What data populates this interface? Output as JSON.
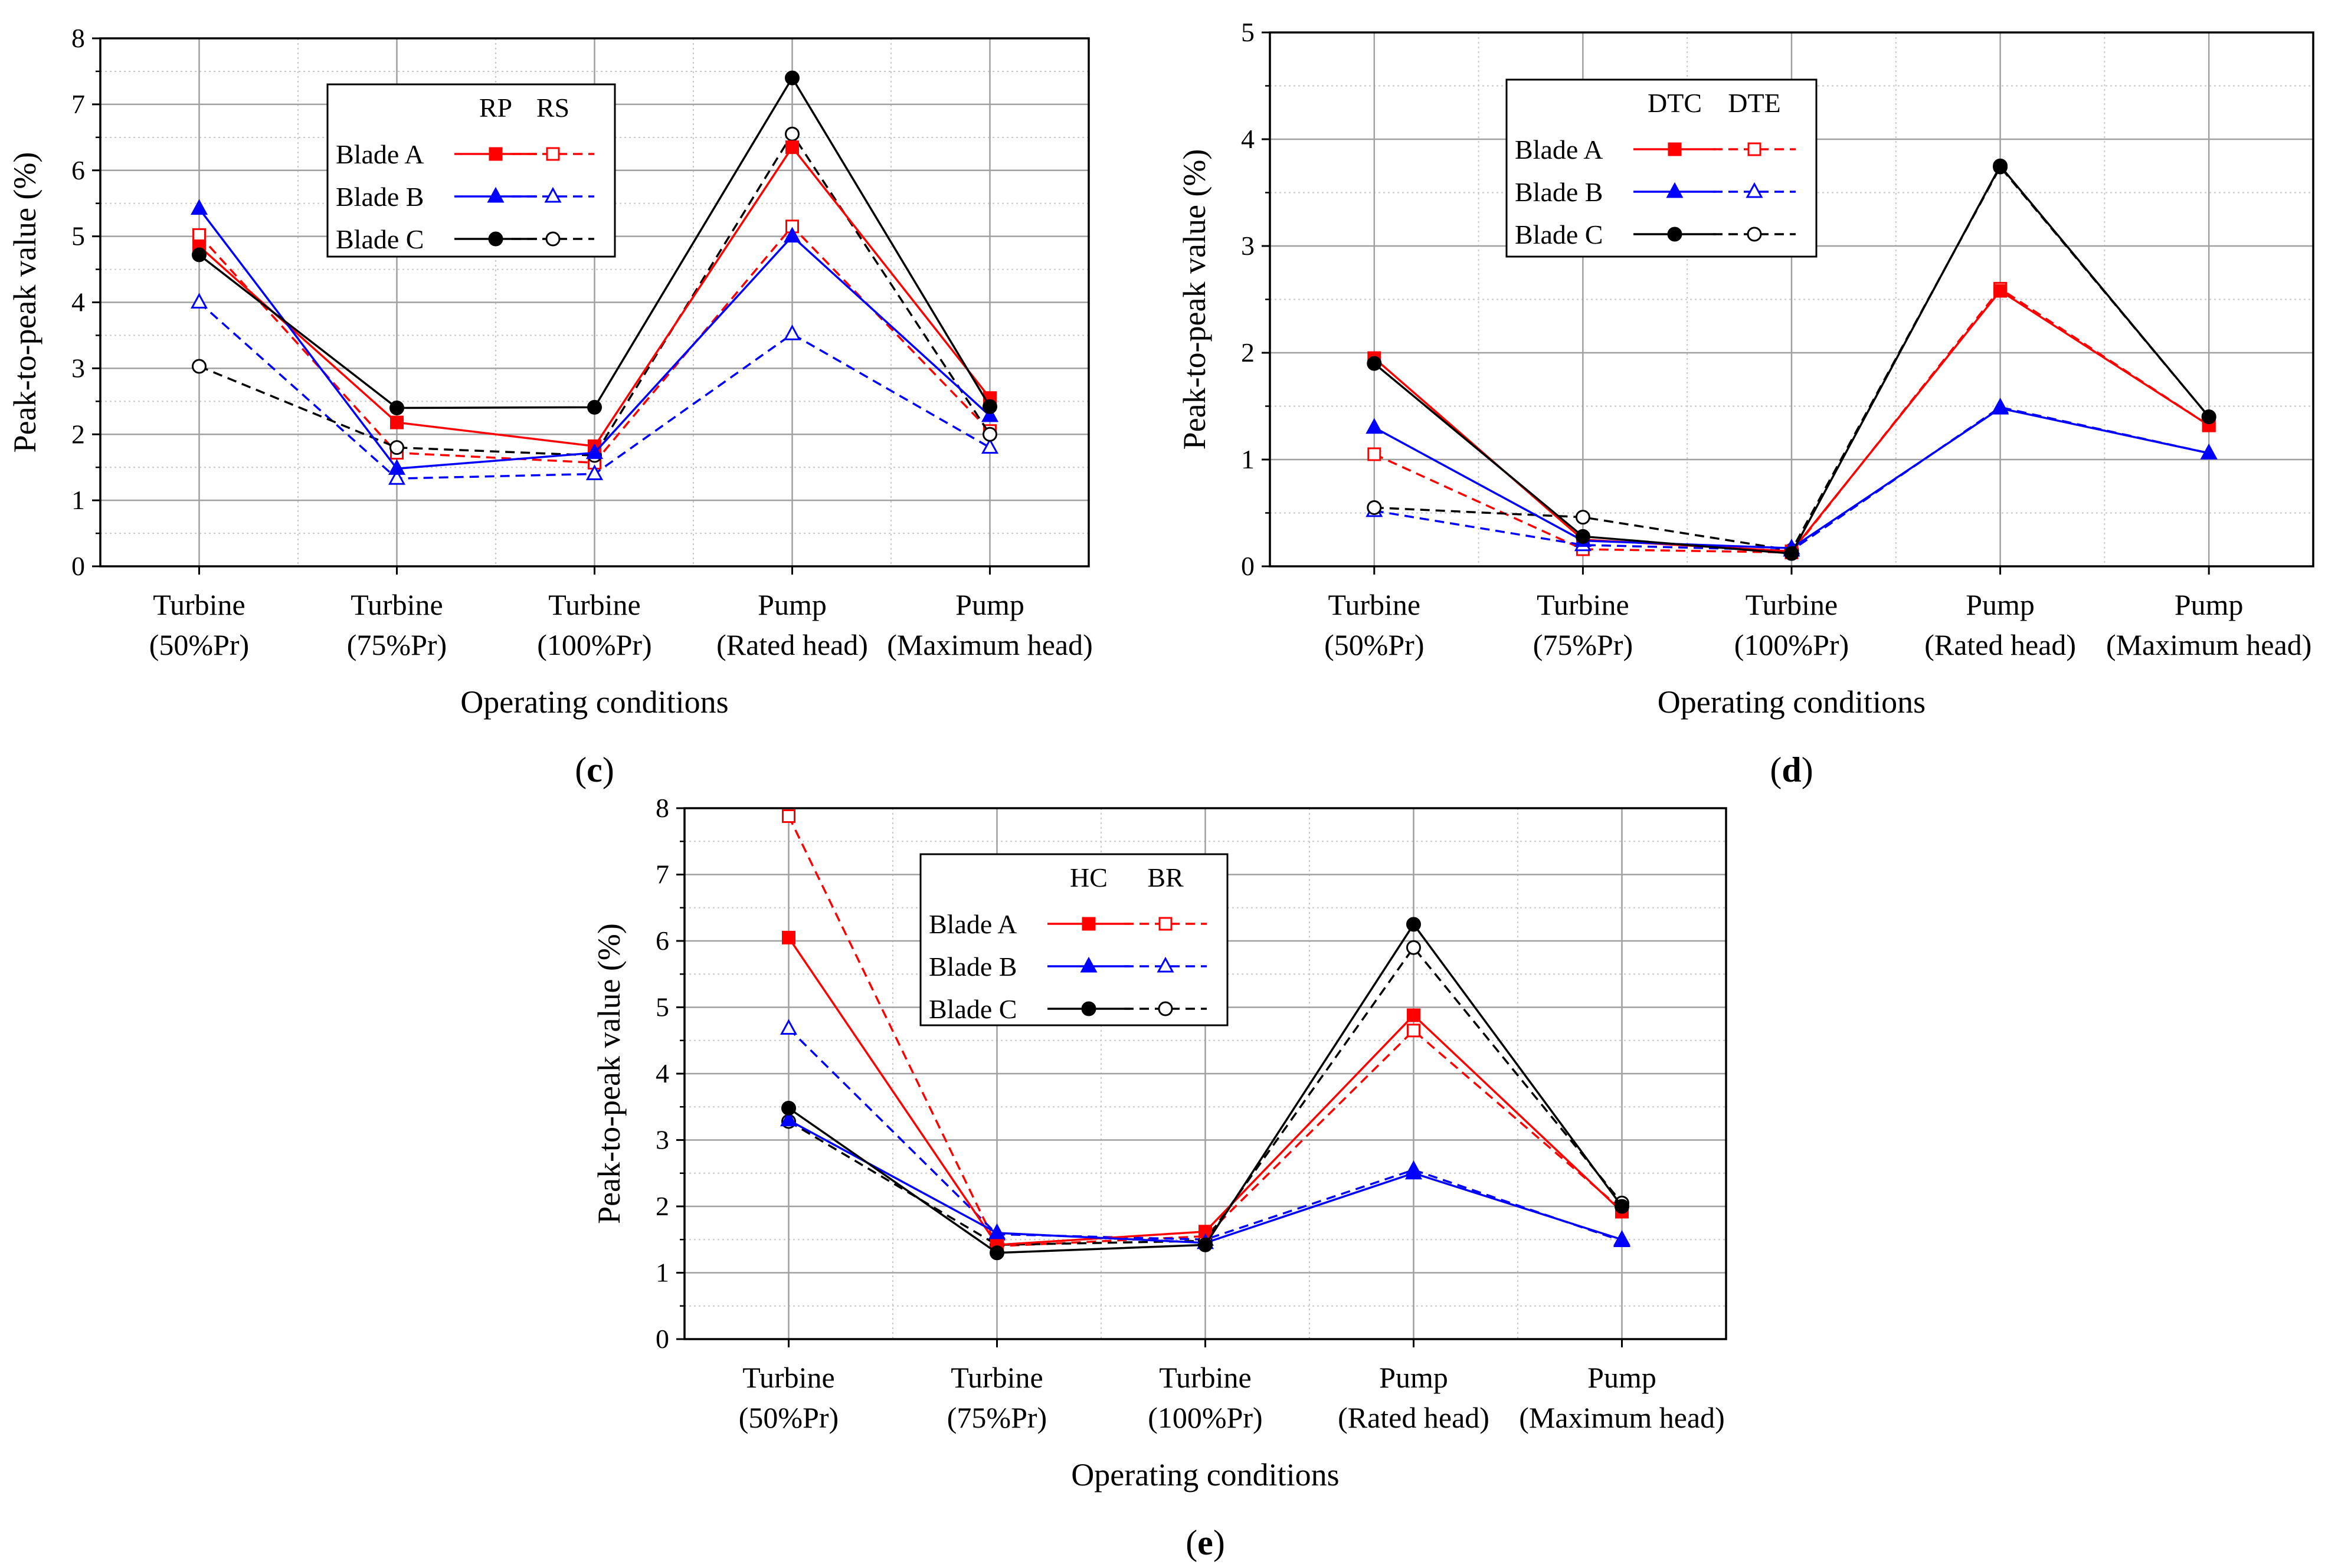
{
  "figure_style": {
    "colors": {
      "Blade A": "#ff0000",
      "Blade B": "#0000ff",
      "Blade C": "#000000"
    },
    "markers": {
      "Blade A": "square",
      "Blade B": "triangle",
      "Blade C": "circle"
    }
  },
  "chart_data": [
    {
      "type": "line",
      "panel_label": "c",
      "xlabel": "Operating conditions",
      "ylabel": "Peak-to-peak value (%)",
      "categories": [
        [
          "Turbine",
          "(50%Pr)"
        ],
        [
          "Turbine",
          "(75%Pr)"
        ],
        [
          "Turbine",
          "(100%Pr)"
        ],
        [
          "Pump",
          "(Rated head)"
        ],
        [
          "Pump",
          "(Maximum head)"
        ]
      ],
      "ylim": [
        0,
        8
      ],
      "yticks": [
        0,
        1,
        2,
        3,
        4,
        5,
        6,
        7,
        8
      ],
      "grid": true,
      "legend": {
        "position": "top-left",
        "solid_label": "RP",
        "dashed_label": "RS"
      },
      "series": [
        {
          "name": "Blade A",
          "group": "RP",
          "values": [
            4.85,
            2.18,
            1.82,
            6.35,
            2.55
          ]
        },
        {
          "name": "Blade A",
          "group": "RS",
          "values": [
            5.02,
            1.72,
            1.57,
            5.15,
            2.05
          ]
        },
        {
          "name": "Blade B",
          "group": "RP",
          "values": [
            5.42,
            1.48,
            1.72,
            5.0,
            2.28
          ]
        },
        {
          "name": "Blade B",
          "group": "RS",
          "values": [
            4.0,
            1.33,
            1.4,
            3.52,
            1.8
          ]
        },
        {
          "name": "Blade C",
          "group": "RP",
          "values": [
            4.72,
            2.4,
            2.41,
            7.4,
            2.42
          ]
        },
        {
          "name": "Blade C",
          "group": "RS",
          "values": [
            3.03,
            1.8,
            1.68,
            6.55,
            2.0
          ]
        }
      ]
    },
    {
      "type": "line",
      "panel_label": "d",
      "xlabel": "Operating conditions",
      "ylabel": "Peak-to-peak value (%)",
      "categories": [
        [
          "Turbine",
          "(50%Pr)"
        ],
        [
          "Turbine",
          "(75%Pr)"
        ],
        [
          "Turbine",
          "(100%Pr)"
        ],
        [
          "Pump",
          "(Rated head)"
        ],
        [
          "Pump",
          "(Maximum head)"
        ]
      ],
      "ylim": [
        0,
        5
      ],
      "yticks": [
        0,
        1,
        2,
        3,
        4,
        5
      ],
      "grid": true,
      "legend": {
        "position": "top-left",
        "solid_label": "DTC",
        "dashed_label": "DTE"
      },
      "series": [
        {
          "name": "Blade A",
          "group": "DTC",
          "values": [
            1.95,
            0.25,
            0.14,
            2.58,
            1.32
          ]
        },
        {
          "name": "Blade A",
          "group": "DTE",
          "values": [
            1.05,
            0.16,
            0.13,
            2.6,
            1.32
          ]
        },
        {
          "name": "Blade B",
          "group": "DTC",
          "values": [
            1.3,
            0.24,
            0.17,
            1.48,
            1.06
          ]
        },
        {
          "name": "Blade B",
          "group": "DTE",
          "values": [
            0.52,
            0.2,
            0.15,
            1.49,
            1.06
          ]
        },
        {
          "name": "Blade C",
          "group": "DTC",
          "values": [
            1.9,
            0.28,
            0.12,
            3.75,
            1.4
          ]
        },
        {
          "name": "Blade C",
          "group": "DTE",
          "values": [
            0.55,
            0.46,
            0.15,
            3.74,
            1.4
          ]
        }
      ]
    },
    {
      "type": "line",
      "panel_label": "e",
      "xlabel": "Operating conditions",
      "ylabel": "Peak-to-peak value (%)",
      "categories": [
        [
          "Turbine",
          "(50%Pr)"
        ],
        [
          "Turbine",
          "(75%Pr)"
        ],
        [
          "Turbine",
          "(100%Pr)"
        ],
        [
          "Pump",
          "(Rated head)"
        ],
        [
          "Pump",
          "(Maximum head)"
        ]
      ],
      "ylim": [
        0,
        8
      ],
      "yticks": [
        0,
        1,
        2,
        3,
        4,
        5,
        6,
        7,
        8
      ],
      "grid": true,
      "legend": {
        "position": "top-left",
        "solid_label": "HC",
        "dashed_label": "BR"
      },
      "series": [
        {
          "name": "Blade A",
          "group": "HC",
          "values": [
            6.05,
            1.42,
            1.62,
            4.88,
            1.92
          ]
        },
        {
          "name": "Blade A",
          "group": "BR",
          "values": [
            7.88,
            1.4,
            1.55,
            4.65,
            1.95
          ]
        },
        {
          "name": "Blade B",
          "group": "HC",
          "values": [
            3.3,
            1.6,
            1.45,
            2.5,
            1.5
          ]
        },
        {
          "name": "Blade B",
          "group": "BR",
          "values": [
            4.68,
            1.58,
            1.5,
            2.55,
            1.48
          ]
        },
        {
          "name": "Blade C",
          "group": "HC",
          "values": [
            3.48,
            1.3,
            1.42,
            6.25,
            2.0
          ]
        },
        {
          "name": "Blade C",
          "group": "BR",
          "values": [
            3.28,
            1.42,
            1.48,
            5.9,
            2.05
          ]
        }
      ]
    }
  ]
}
